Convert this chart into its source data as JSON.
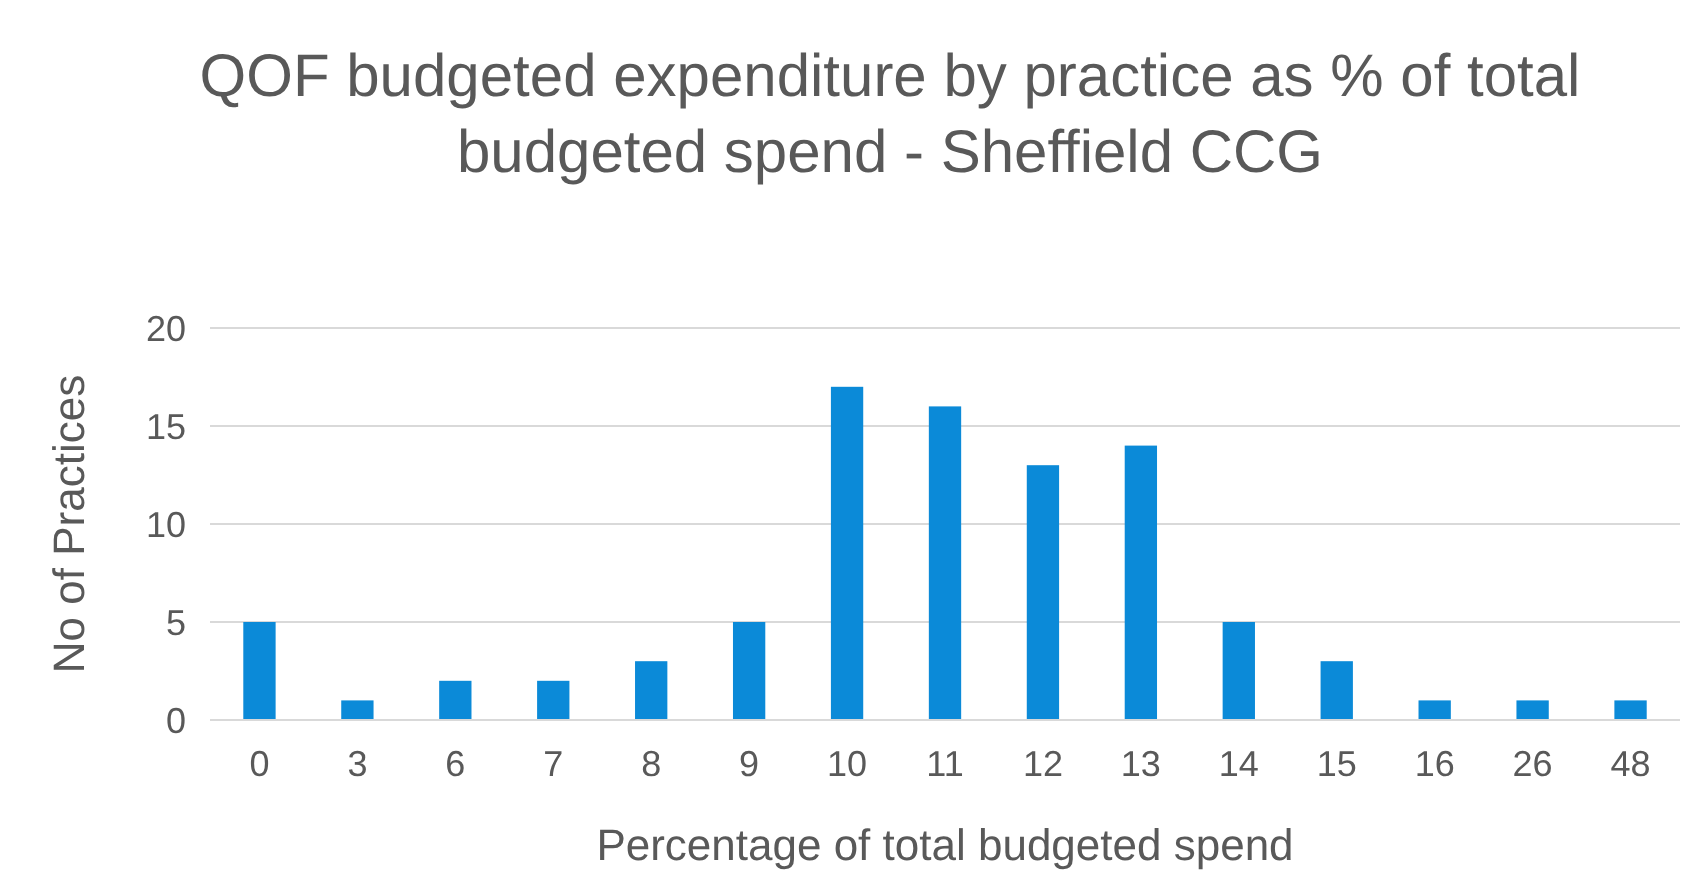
{
  "chart_data": {
    "type": "bar",
    "title": "QOF budgeted expenditure by practice as % of total budgeted spend - Sheffield CCG",
    "xlabel": "Percentage of total budgeted spend",
    "ylabel": "No of Practices",
    "categories": [
      "0",
      "3",
      "6",
      "7",
      "8",
      "9",
      "10",
      "11",
      "12",
      "13",
      "14",
      "15",
      "16",
      "26",
      "48"
    ],
    "values": [
      5,
      1,
      2,
      2,
      3,
      5,
      17,
      16,
      13,
      14,
      5,
      3,
      1,
      1,
      1
    ],
    "color": "#0b8ad8",
    "ylim": [
      0,
      20
    ],
    "yticks": [
      0,
      5,
      10,
      15,
      20
    ],
    "grid": "y"
  }
}
